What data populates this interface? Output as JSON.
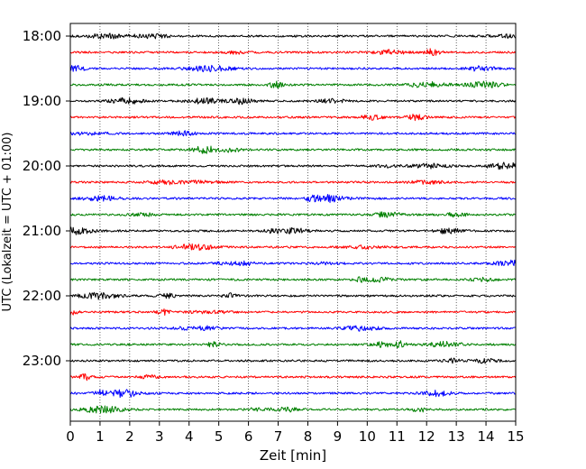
{
  "chart_data": {
    "type": "line",
    "title": "",
    "xlabel": "Zeit  [min]",
    "ylabel": "UTC (Lokalzeit = UTC + 01:00)",
    "xlim": [
      0,
      15
    ],
    "x_ticks": [
      0,
      1,
      2,
      3,
      4,
      5,
      6,
      7,
      8,
      9,
      10,
      11,
      12,
      13,
      14,
      15
    ],
    "x_tick_labels": [
      "0",
      "1",
      "2",
      "3",
      "4",
      "5",
      "6",
      "7",
      "8",
      "9",
      "10",
      "11",
      "12",
      "13",
      "14",
      "15"
    ],
    "y_tick_labels": [
      "18:00",
      "19:00",
      "20:00",
      "21:00",
      "22:00",
      "23:00"
    ],
    "traces_per_hour": 4,
    "trace_start_times": [
      "18:00",
      "18:15",
      "18:30",
      "18:45",
      "19:00",
      "19:15",
      "19:30",
      "19:45",
      "20:00",
      "20:15",
      "20:30",
      "20:45",
      "21:00",
      "21:15",
      "21:30",
      "21:45",
      "22:00",
      "22:15",
      "22:30",
      "22:45",
      "23:00",
      "23:15",
      "23:30",
      "23:45"
    ],
    "trace_colors": [
      "#000000",
      "#ff0000",
      "#0000ff",
      "#008000"
    ],
    "vertical_grid": "dotted",
    "legend": "none"
  }
}
